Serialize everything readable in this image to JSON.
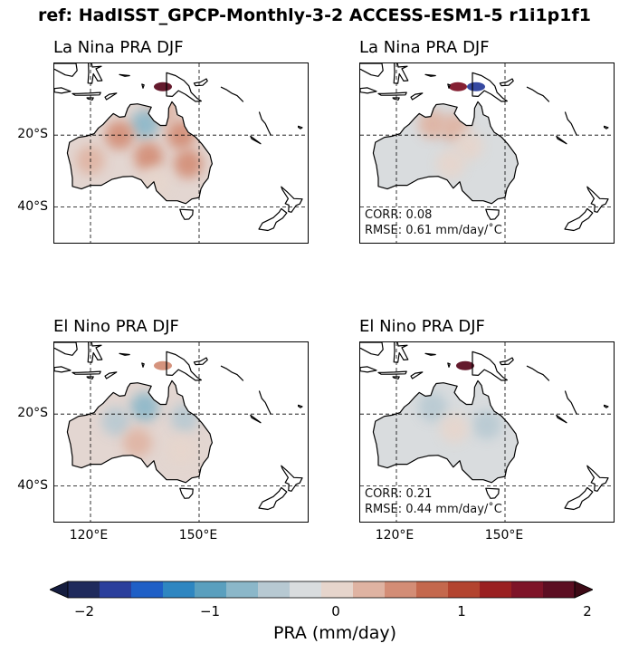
{
  "figure": {
    "suptitle": "ref: HadISST_GPCP-Monthly-3-2 ACCESS-ESM1-5 r1i1p1f1"
  },
  "chart_data": {
    "type": "heatmap",
    "variable": "PRA",
    "lat_ticks": [
      "20°S",
      "40°S"
    ],
    "lon_ticks": [
      "120°E",
      "150°E"
    ],
    "gridlines": {
      "lat": [
        -20,
        -40
      ],
      "lon": [
        120,
        150
      ]
    },
    "extent": {
      "lon": [
        110,
        180
      ],
      "lat": [
        -50,
        0
      ]
    },
    "panels": [
      {
        "title": "La Nina PRA DJF",
        "field": [
          {
            "lon": 140,
            "lat": -6,
            "value": 1.8
          },
          {
            "lon": 140,
            "lat": -13,
            "value": 0.3
          },
          {
            "lon": 135,
            "lat": -17,
            "value": -0.6
          },
          {
            "lon": 128,
            "lat": -20,
            "value": 0.5
          },
          {
            "lon": 136,
            "lat": -26,
            "value": 0.6
          },
          {
            "lon": 145,
            "lat": -20,
            "value": 0.7
          },
          {
            "lon": 147,
            "lat": -28,
            "value": 0.5
          },
          {
            "lon": 120,
            "lat": -27,
            "value": 0.4
          },
          {
            "lon": 138,
            "lat": -33,
            "value": 0.2
          }
        ]
      },
      {
        "title": "La Nina PRA DJF",
        "corr": "CORR: 0.08",
        "rmse": "RMSE: 0.61 mm/day/$^\\circ$C",
        "field": [
          {
            "lon": 142,
            "lat": -6,
            "value": -1.6
          },
          {
            "lon": 137,
            "lat": -6,
            "value": 1.6
          },
          {
            "lon": 130,
            "lat": -17,
            "value": 0.3
          },
          {
            "lon": 136,
            "lat": -18,
            "value": 0.35
          },
          {
            "lon": 140,
            "lat": -23,
            "value": 0.2
          },
          {
            "lon": 135,
            "lat": -28,
            "value": 0.15
          }
        ]
      },
      {
        "title": "El Nino PRA DJF",
        "field": [
          {
            "lon": 140,
            "lat": -6,
            "value": 0.5
          },
          {
            "lon": 135,
            "lat": -18,
            "value": -0.7
          },
          {
            "lon": 127,
            "lat": -22,
            "value": -0.4
          },
          {
            "lon": 146,
            "lat": -21,
            "value": -0.5
          },
          {
            "lon": 133,
            "lat": -28,
            "value": 0.3
          },
          {
            "lon": 145,
            "lat": -30,
            "value": 0.2
          }
        ]
      },
      {
        "title": "El Nino PRA DJF",
        "corr": "CORR: 0.21",
        "rmse": "RMSE: 0.44 mm/day/$^\\circ$C",
        "field": [
          {
            "lon": 139,
            "lat": -6,
            "value": 1.8
          },
          {
            "lon": 130,
            "lat": -18,
            "value": -0.3
          },
          {
            "lon": 145,
            "lat": -23,
            "value": -0.3
          },
          {
            "lon": 136,
            "lat": -24,
            "value": 0.2
          }
        ]
      }
    ],
    "colorbar": {
      "label": "PRA (mm/day)",
      "ticks": [
        "−2",
        "−1",
        "0",
        "1",
        "2"
      ],
      "range": [
        -2,
        2
      ],
      "colors": [
        "#1f2a5c",
        "#2b3f9c",
        "#1f5fc6",
        "#2e86c1",
        "#5a9fbe",
        "#8bb7c9",
        "#b7c9d2",
        "#d9dcde",
        "#e6d5cc",
        "#dfb3a2",
        "#d38d76",
        "#c4684d",
        "#b3442f",
        "#9a2021",
        "#7e1428",
        "#5c0e22"
      ],
      "under": "#151d3f",
      "over": "#3d0a16"
    }
  },
  "stats_display": [
    {
      "corr": "CORR: 0.08",
      "rmse": "RMSE: 0.61 mm/day/˚C"
    },
    {
      "corr": "CORR: 0.21",
      "rmse": "RMSE: 0.44 mm/day/˚C"
    }
  ]
}
